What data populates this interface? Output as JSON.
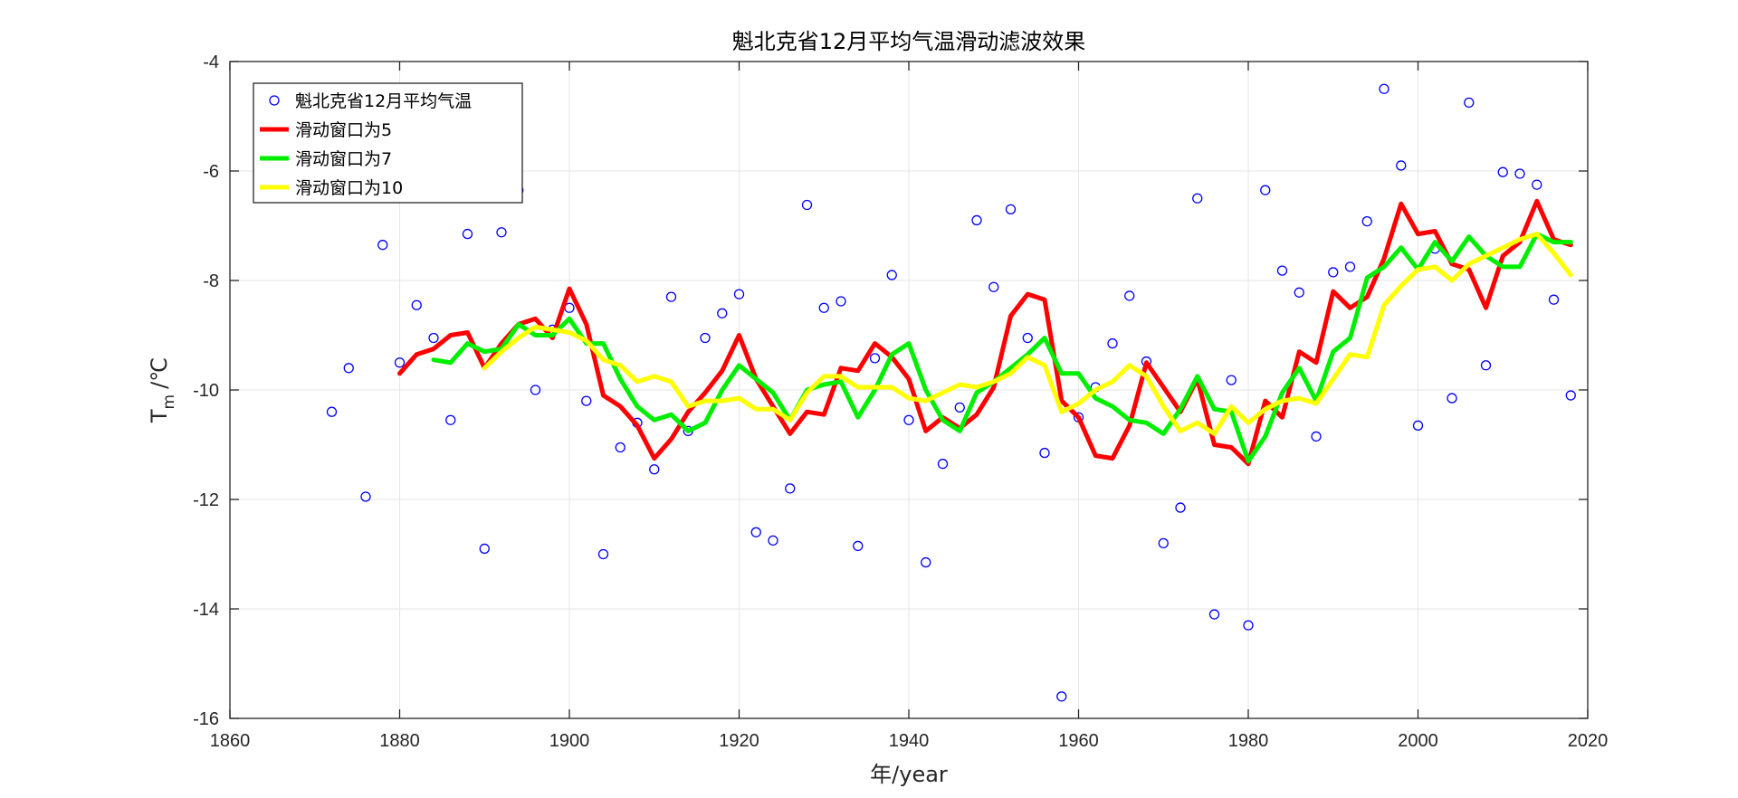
{
  "chart_data": {
    "type": "line",
    "title": "魁北克省12月平均气温滑动滤波效果",
    "xlabel": "年/year",
    "ylabel_main": "T",
    "ylabel_sub": "m",
    "ylabel_unit": "/℃",
    "xlim": [
      1860,
      2020
    ],
    "ylim": [
      -16,
      -4
    ],
    "xticks": [
      1860,
      1880,
      1900,
      1920,
      1940,
      1960,
      1980,
      2000,
      2020
    ],
    "yticks": [
      -16,
      -14,
      -12,
      -10,
      -8,
      -6,
      -4
    ],
    "grid": true,
    "legend_position": "top-left",
    "scatter": {
      "name": "魁北克省12月平均气温",
      "color": "#0000ff",
      "points": [
        [
          1872,
          -10.4
        ],
        [
          1874,
          -9.6
        ],
        [
          1876,
          -11.95
        ],
        [
          1878,
          -7.35
        ],
        [
          1880,
          -9.5
        ],
        [
          1882,
          -8.45
        ],
        [
          1884,
          -9.05
        ],
        [
          1886,
          -10.55
        ],
        [
          1888,
          -7.15
        ],
        [
          1890,
          -12.9
        ],
        [
          1892,
          -7.12
        ],
        [
          1894,
          -6.35
        ],
        [
          1896,
          -10.0
        ],
        [
          1898,
          -8.9
        ],
        [
          1900,
          -8.5
        ],
        [
          1902,
          -10.2
        ],
        [
          1904,
          -13.0
        ],
        [
          1906,
          -11.05
        ],
        [
          1908,
          -10.6
        ],
        [
          1910,
          -11.45
        ],
        [
          1912,
          -8.3
        ],
        [
          1914,
          -10.75
        ],
        [
          1916,
          -9.05
        ],
        [
          1918,
          -8.6
        ],
        [
          1920,
          -8.25
        ],
        [
          1922,
          -12.6
        ],
        [
          1924,
          -12.75
        ],
        [
          1926,
          -11.8
        ],
        [
          1928,
          -6.62
        ],
        [
          1930,
          -8.5
        ],
        [
          1932,
          -8.38
        ],
        [
          1934,
          -12.85
        ],
        [
          1936,
          -9.42
        ],
        [
          1938,
          -7.9
        ],
        [
          1940,
          -10.55
        ],
        [
          1942,
          -13.15
        ],
        [
          1944,
          -11.35
        ],
        [
          1946,
          -10.32
        ],
        [
          1948,
          -6.9
        ],
        [
          1950,
          -8.12
        ],
        [
          1952,
          -6.7
        ],
        [
          1954,
          -9.05
        ],
        [
          1956,
          -11.15
        ],
        [
          1958,
          -15.6
        ],
        [
          1960,
          -10.5
        ],
        [
          1962,
          -9.95
        ],
        [
          1964,
          -9.15
        ],
        [
          1966,
          -8.28
        ],
        [
          1968,
          -9.48
        ],
        [
          1970,
          -12.8
        ],
        [
          1972,
          -12.15
        ],
        [
          1974,
          -6.5
        ],
        [
          1976,
          -14.1
        ],
        [
          1978,
          -9.82
        ],
        [
          1980,
          -14.3
        ],
        [
          1982,
          -6.35
        ],
        [
          1984,
          -7.82
        ],
        [
          1986,
          -8.22
        ],
        [
          1988,
          -10.85
        ],
        [
          1990,
          -7.85
        ],
        [
          1992,
          -7.75
        ],
        [
          1994,
          -6.92
        ],
        [
          1996,
          -4.5
        ],
        [
          1998,
          -5.9
        ],
        [
          2000,
          -10.65
        ],
        [
          2002,
          -7.42
        ],
        [
          2004,
          -10.15
        ],
        [
          2006,
          -4.75
        ],
        [
          2008,
          -9.55
        ],
        [
          2010,
          -6.02
        ],
        [
          2012,
          -6.05
        ],
        [
          2014,
          -6.25
        ],
        [
          2016,
          -8.35
        ],
        [
          2018,
          -10.1
        ]
      ]
    },
    "series": [
      {
        "name": "滑动窗口为5",
        "color": "#ff0000",
        "x": [
          1880,
          1882,
          1884,
          1886,
          1888,
          1890,
          1892,
          1894,
          1896,
          1898,
          1900,
          1902,
          1904,
          1906,
          1908,
          1910,
          1912,
          1914,
          1916,
          1918,
          1920,
          1922,
          1924,
          1926,
          1928,
          1930,
          1932,
          1934,
          1936,
          1938,
          1940,
          1942,
          1944,
          1946,
          1948,
          1950,
          1952,
          1954,
          1956,
          1958,
          1960,
          1962,
          1964,
          1966,
          1968,
          1970,
          1972,
          1974,
          1976,
          1978,
          1980,
          1982,
          1984,
          1986,
          1988,
          1990,
          1992,
          1994,
          1996,
          1998,
          2000,
          2002,
          2004,
          2006,
          2008,
          2010,
          2012,
          2014,
          2016,
          2018
        ],
        "values": [
          -9.7,
          -9.35,
          -9.25,
          -9.0,
          -8.95,
          -9.6,
          -9.15,
          -8.8,
          -8.7,
          -9.05,
          -8.15,
          -8.8,
          -10.1,
          -10.3,
          -10.65,
          -11.25,
          -10.9,
          -10.4,
          -10.05,
          -9.65,
          -9.0,
          -9.8,
          -10.3,
          -10.8,
          -10.4,
          -10.45,
          -9.6,
          -9.65,
          -9.15,
          -9.4,
          -9.8,
          -10.75,
          -10.5,
          -10.7,
          -10.45,
          -9.95,
          -8.65,
          -8.25,
          -8.35,
          -10.2,
          -10.5,
          -11.2,
          -11.25,
          -10.65,
          -9.5,
          -9.95,
          -10.4,
          -9.8,
          -11.0,
          -11.05,
          -11.35,
          -10.2,
          -10.5,
          -9.3,
          -9.5,
          -8.2,
          -8.5,
          -8.3,
          -7.6,
          -6.6,
          -7.15,
          -7.1,
          -7.7,
          -7.8,
          -8.5,
          -7.55,
          -7.3,
          -6.55,
          -7.25,
          -7.35
        ]
      },
      {
        "name": "滑动窗口为7",
        "color": "#00ee00",
        "x": [
          1884,
          1886,
          1888,
          1890,
          1892,
          1894,
          1896,
          1898,
          1900,
          1902,
          1904,
          1906,
          1908,
          1910,
          1912,
          1914,
          1916,
          1918,
          1920,
          1922,
          1924,
          1926,
          1928,
          1930,
          1932,
          1934,
          1936,
          1938,
          1940,
          1942,
          1944,
          1946,
          1948,
          1950,
          1952,
          1954,
          1956,
          1958,
          1960,
          1962,
          1964,
          1966,
          1968,
          1970,
          1972,
          1974,
          1976,
          1978,
          1980,
          1982,
          1984,
          1986,
          1988,
          1990,
          1992,
          1994,
          1996,
          1998,
          2000,
          2002,
          2004,
          2006,
          2008,
          2010,
          2012,
          2014,
          2016,
          2018
        ],
        "values": [
          -9.45,
          -9.5,
          -9.15,
          -9.3,
          -9.25,
          -8.8,
          -9.0,
          -9.0,
          -8.7,
          -9.15,
          -9.15,
          -9.8,
          -10.3,
          -10.55,
          -10.45,
          -10.75,
          -10.6,
          -10.0,
          -9.55,
          -9.8,
          -10.05,
          -10.55,
          -10.0,
          -9.9,
          -9.85,
          -10.5,
          -10.0,
          -9.35,
          -9.15,
          -10.0,
          -10.55,
          -10.75,
          -10.05,
          -9.85,
          -9.6,
          -9.35,
          -9.05,
          -9.7,
          -9.7,
          -10.15,
          -10.3,
          -10.55,
          -10.6,
          -10.8,
          -10.35,
          -9.75,
          -10.35,
          -10.4,
          -11.3,
          -10.85,
          -10.05,
          -9.6,
          -10.2,
          -9.3,
          -9.05,
          -7.95,
          -7.75,
          -7.4,
          -7.8,
          -7.3,
          -7.65,
          -7.2,
          -7.55,
          -7.75,
          -7.75,
          -7.15,
          -7.3,
          -7.3
        ]
      },
      {
        "name": "滑动窗口为10",
        "color": "#ffff00",
        "x": [
          1890,
          1892,
          1894,
          1896,
          1898,
          1900,
          1902,
          1904,
          1906,
          1908,
          1910,
          1912,
          1914,
          1916,
          1918,
          1920,
          1922,
          1924,
          1926,
          1928,
          1930,
          1932,
          1934,
          1936,
          1938,
          1940,
          1942,
          1944,
          1946,
          1948,
          1950,
          1952,
          1954,
          1956,
          1958,
          1960,
          1962,
          1964,
          1966,
          1968,
          1970,
          1972,
          1974,
          1976,
          1978,
          1980,
          1982,
          1984,
          1986,
          1988,
          1990,
          1992,
          1994,
          1996,
          1998,
          2000,
          2002,
          2004,
          2006,
          2008,
          2010,
          2012,
          2014,
          2016,
          2018
        ],
        "values": [
          -9.6,
          -9.3,
          -9.05,
          -8.85,
          -8.9,
          -8.95,
          -9.1,
          -9.45,
          -9.55,
          -9.85,
          -9.75,
          -9.85,
          -10.3,
          -10.2,
          -10.2,
          -10.15,
          -10.35,
          -10.35,
          -10.55,
          -10.05,
          -9.75,
          -9.75,
          -9.95,
          -9.95,
          -9.95,
          -10.15,
          -10.2,
          -10.05,
          -9.9,
          -9.95,
          -9.85,
          -9.7,
          -9.4,
          -9.55,
          -10.4,
          -10.25,
          -10.0,
          -9.85,
          -9.55,
          -9.75,
          -10.3,
          -10.75,
          -10.6,
          -10.8,
          -10.3,
          -10.6,
          -10.35,
          -10.2,
          -10.15,
          -10.25,
          -9.8,
          -9.35,
          -9.4,
          -8.45,
          -8.1,
          -7.8,
          -7.75,
          -8.0,
          -7.7,
          -7.55,
          -7.4,
          -7.25,
          -7.15,
          -7.5,
          -7.9
        ]
      }
    ]
  }
}
